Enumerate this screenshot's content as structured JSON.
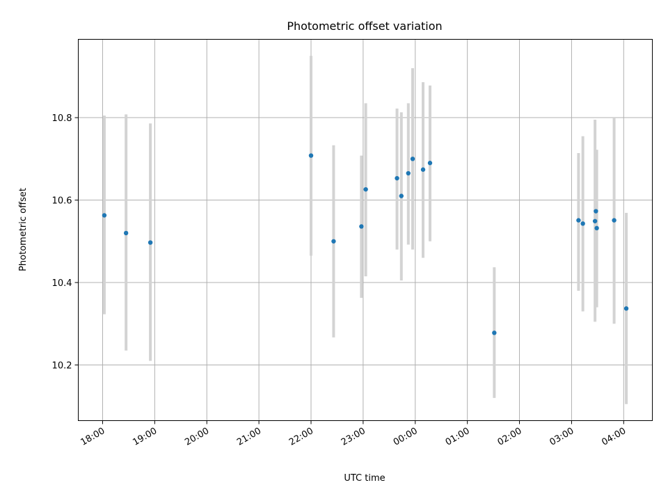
{
  "chart_data": {
    "type": "scatter",
    "title": "Photometric offset variation",
    "xlabel": "UTC time",
    "ylabel": "Photometric offset",
    "x_axis": {
      "type": "time",
      "ticks": [
        "18:00",
        "19:00",
        "20:00",
        "21:00",
        "22:00",
        "23:00",
        "00:00",
        "01:00",
        "02:00",
        "03:00",
        "04:00"
      ],
      "range": [
        "17:32",
        "04:33"
      ]
    },
    "y_axis": {
      "ticks": [
        "10.2",
        "10.4",
        "10.6",
        "10.8"
      ],
      "tick_values": [
        10.2,
        10.4,
        10.6,
        10.8
      ],
      "range": [
        10.065,
        10.99
      ]
    },
    "grid": true,
    "colors": {
      "marker": "#1f77b4",
      "errorbar": "#d3d3d3",
      "grid": "#b0b0b0"
    },
    "series": [
      {
        "points": [
          {
            "time": "18:02",
            "y": 10.563,
            "yerr_low": 10.323,
            "yerr_high": 10.805
          },
          {
            "time": "18:27",
            "y": 10.52,
            "yerr_low": 10.235,
            "yerr_high": 10.808
          },
          {
            "time": "18:55",
            "y": 10.497,
            "yerr_low": 10.21,
            "yerr_high": 10.786
          },
          {
            "time": "22:00",
            "y": 10.708,
            "yerr_low": 10.465,
            "yerr_high": 10.95
          },
          {
            "time": "22:26",
            "y": 10.5,
            "yerr_low": 10.267,
            "yerr_high": 10.733
          },
          {
            "time": "22:58",
            "y": 10.536,
            "yerr_low": 10.363,
            "yerr_high": 10.708
          },
          {
            "time": "23:03",
            "y": 10.626,
            "yerr_low": 10.415,
            "yerr_high": 10.835
          },
          {
            "time": "23:39",
            "y": 10.653,
            "yerr_low": 10.48,
            "yerr_high": 10.822
          },
          {
            "time": "23:44",
            "y": 10.61,
            "yerr_low": 10.405,
            "yerr_high": 10.813
          },
          {
            "time": "23:52",
            "y": 10.665,
            "yerr_low": 10.492,
            "yerr_high": 10.835
          },
          {
            "time": "23:57",
            "y": 10.7,
            "yerr_low": 10.48,
            "yerr_high": 10.92
          },
          {
            "time": "00:09",
            "y": 10.674,
            "yerr_low": 10.46,
            "yerr_high": 10.886
          },
          {
            "time": "00:17",
            "y": 10.69,
            "yerr_low": 10.5,
            "yerr_high": 10.878
          },
          {
            "time": "01:31",
            "y": 10.278,
            "yerr_low": 10.12,
            "yerr_high": 10.437
          },
          {
            "time": "03:08",
            "y": 10.551,
            "yerr_low": 10.38,
            "yerr_high": 10.714
          },
          {
            "time": "03:13",
            "y": 10.543,
            "yerr_low": 10.33,
            "yerr_high": 10.755
          },
          {
            "time": "03:27",
            "y": 10.549,
            "yerr_low": 10.305,
            "yerr_high": 10.795
          },
          {
            "time": "03:28",
            "y": 10.573,
            "yerr_low": 10.43,
            "yerr_high": 10.722
          },
          {
            "time": "03:29",
            "y": 10.532,
            "yerr_low": 10.34,
            "yerr_high": 10.722
          },
          {
            "time": "03:49",
            "y": 10.551,
            "yerr_low": 10.3,
            "yerr_high": 10.8
          },
          {
            "time": "04:03",
            "y": 10.337,
            "yerr_low": 10.105,
            "yerr_high": 10.569
          }
        ]
      }
    ]
  }
}
